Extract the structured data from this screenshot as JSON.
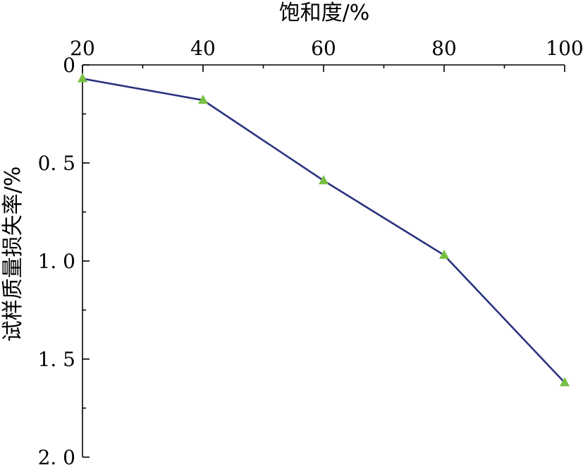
{
  "chart_data": {
    "type": "line",
    "title": "",
    "xlabel": "饱和度/%",
    "ylabel": "试样质量损失率/%",
    "x_axis_position": "top",
    "y_axis_inverted": true,
    "xlim": [
      20,
      100
    ],
    "ylim": [
      0,
      2.0
    ],
    "x_ticks": [
      20,
      40,
      60,
      80,
      100
    ],
    "x_tick_labels": [
      "20",
      "40",
      "60",
      "80",
      "100"
    ],
    "y_ticks": [
      0,
      0.5,
      1.0,
      1.5,
      2.0
    ],
    "y_tick_labels": [
      "0",
      "0.5",
      "1.0",
      "1.5",
      "2.0"
    ],
    "y_tick_labels_spaced": [
      "0",
      "0. 5",
      "1. 0",
      "1. 5",
      "2. 0"
    ],
    "grid": false,
    "series": [
      {
        "x": [
          20,
          40,
          60,
          80,
          100
        ],
        "y": [
          0.07,
          0.18,
          0.59,
          0.97,
          1.62
        ],
        "line_color": "#2a3280",
        "marker": "triangle",
        "marker_color": "#77c043"
      }
    ]
  }
}
